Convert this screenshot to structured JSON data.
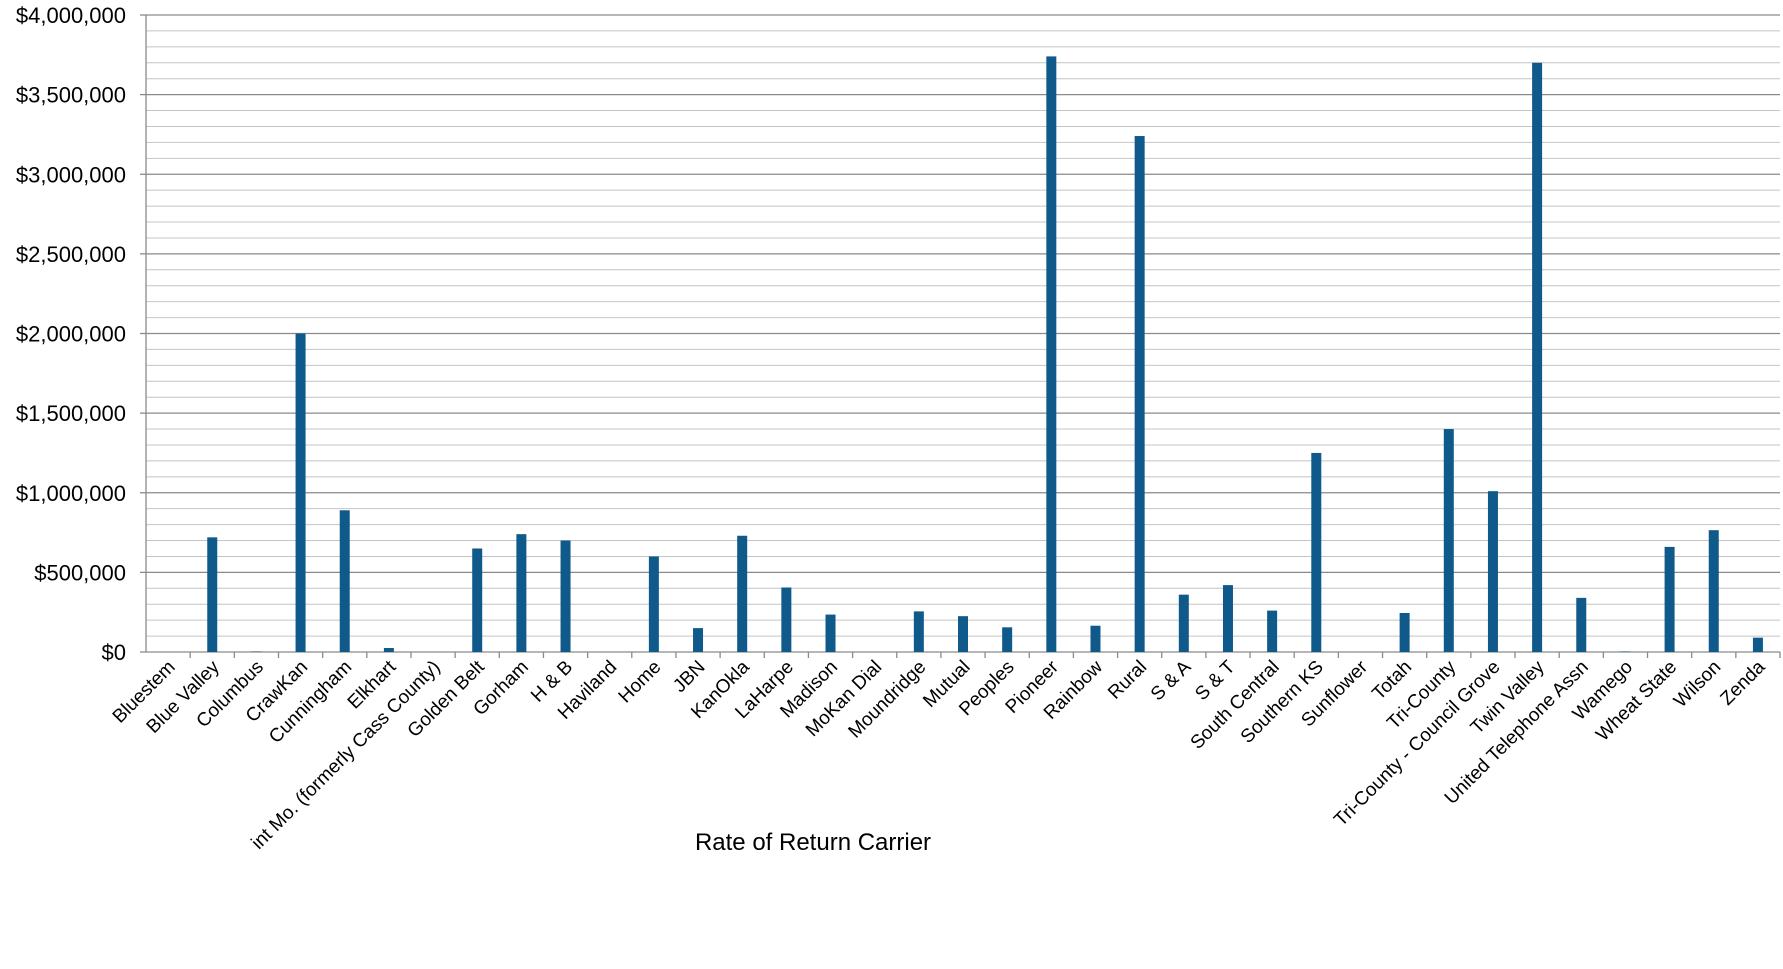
{
  "chart_data": {
    "type": "bar",
    "title": "",
    "xlabel": "Rate of Return Carrier",
    "ylabel": "",
    "ylim": [
      0,
      4000000
    ],
    "yticks": [
      0,
      500000,
      1000000,
      1500000,
      2000000,
      2500000,
      3000000,
      3500000,
      4000000
    ],
    "ytick_labels": [
      "$0",
      "$500,000",
      "$1,000,000",
      "$1,500,000",
      "$2,000,000",
      "$2,500,000",
      "$3,000,000",
      "$3,500,000",
      "$4,000,000"
    ],
    "grid": "major and minor horizontal gridlines",
    "legend": "none",
    "bar_color": "#0f5a8a",
    "categories": [
      "Bluestem",
      "Blue Valley",
      "Columbus",
      "CrawKan",
      "Cunningham",
      "Elkhart",
      "int Mo. (formerly Cass County)",
      "Golden Belt",
      "Gorham",
      "H & B",
      "Haviland",
      "Home",
      "JBN",
      "KanOkla",
      "LaHarpe",
      "Madison",
      "MoKan Dial",
      "Moundridge",
      "Mutual",
      "Peoples",
      "Pioneer",
      "Rainbow",
      "Rural",
      "S & A",
      "S & T",
      "South Central",
      "Southern KS",
      "Sunflower",
      "Totah",
      "Tri-County",
      "Tri-County - Council Grove",
      "Twin Valley",
      "United Telephone Assn",
      "Wamego",
      "Wheat State",
      "Wilson",
      "Zenda"
    ],
    "values": [
      0,
      720000,
      3000,
      2000000,
      890000,
      25000,
      0,
      650000,
      740000,
      700000,
      0,
      600000,
      150000,
      730000,
      405000,
      235000,
      0,
      255000,
      225000,
      155000,
      3740000,
      165000,
      3240000,
      360000,
      420000,
      260000,
      1250000,
      0,
      245000,
      1400000,
      1010000,
      3700000,
      340000,
      3000,
      660000,
      765000,
      90000
    ]
  }
}
